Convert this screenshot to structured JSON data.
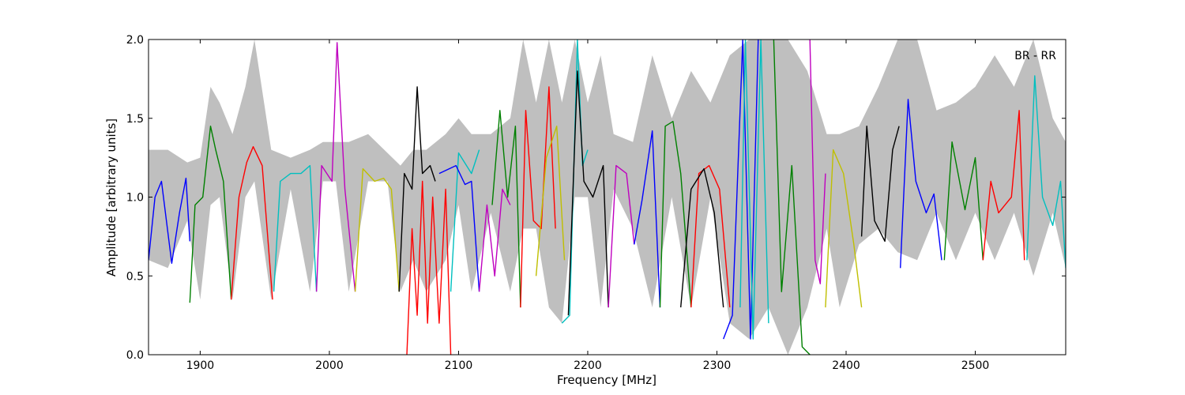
{
  "chart_data": {
    "type": "line",
    "title": "",
    "annotation": "BR - RR",
    "xlabel": "Frequency [MHz]",
    "ylabel": "Amplitude [arbitrary units]",
    "xlim": [
      1860,
      2570
    ],
    "ylim": [
      0.0,
      2.0
    ],
    "xticks": [
      1900,
      2000,
      2100,
      2200,
      2300,
      2400,
      2500
    ],
    "xtick_labels": [
      "1900",
      "2000",
      "2100",
      "2200",
      "2300",
      "2400",
      "2500"
    ],
    "yticks": [
      0.0,
      0.5,
      1.0,
      1.5,
      2.0
    ],
    "ytick_labels": [
      "0.0",
      "0.5",
      "1.0",
      "1.5",
      "2.0"
    ],
    "grid": false,
    "legend": "none",
    "envelope": {
      "color": "#bfbfbf",
      "x": [
        1860,
        1875,
        1890,
        1900,
        1908,
        1915,
        1925,
        1935,
        1942,
        1955,
        1970,
        1985,
        1995,
        2005,
        2015,
        2030,
        2045,
        2055,
        2065,
        2075,
        2090,
        2100,
        2110,
        2125,
        2140,
        2150,
        2160,
        2170,
        2180,
        2190,
        2200,
        2210,
        2220,
        2235,
        2250,
        2265,
        2280,
        2295,
        2310,
        2325,
        2340,
        2355,
        2370,
        2385,
        2395,
        2410,
        2425,
        2440,
        2455,
        2470,
        2485,
        2500,
        2515,
        2530,
        2545,
        2560,
        2570
      ],
      "upper": [
        1.3,
        1.3,
        1.22,
        1.25,
        1.7,
        1.6,
        1.4,
        1.7,
        2.0,
        1.3,
        1.25,
        1.3,
        1.35,
        1.35,
        1.35,
        1.4,
        1.28,
        1.2,
        1.3,
        1.3,
        1.4,
        1.5,
        1.4,
        1.4,
        1.5,
        2.0,
        1.6,
        2.0,
        1.6,
        2.0,
        1.6,
        1.9,
        1.4,
        1.35,
        1.9,
        1.5,
        1.8,
        1.6,
        1.9,
        2.0,
        2.0,
        2.0,
        1.8,
        1.4,
        1.4,
        1.45,
        1.7,
        2.0,
        2.0,
        1.55,
        1.6,
        1.7,
        1.9,
        1.7,
        2.0,
        1.5,
        1.35
      ],
      "lower": [
        0.6,
        0.55,
        0.85,
        0.35,
        0.95,
        1.0,
        0.35,
        1.0,
        1.1,
        0.35,
        1.05,
        0.4,
        1.1,
        1.1,
        0.4,
        1.1,
        1.1,
        0.4,
        0.6,
        0.4,
        0.6,
        0.95,
        0.4,
        0.9,
        0.4,
        0.8,
        0.8,
        0.3,
        0.2,
        1.0,
        1.0,
        0.3,
        1.05,
        0.8,
        0.3,
        1.0,
        0.3,
        1.0,
        0.2,
        0.1,
        0.3,
        0.0,
        0.3,
        0.8,
        0.3,
        0.7,
        0.8,
        0.65,
        0.6,
        0.9,
        0.6,
        0.9,
        0.6,
        0.9,
        0.5,
        0.9,
        0.55
      ]
    },
    "series": [
      {
        "color": "#0000ff",
        "x": [
          1860,
          1865,
          1870,
          1878,
          1884,
          1889,
          1892
        ],
        "y": [
          0.6,
          1.0,
          1.1,
          0.58,
          0.9,
          1.12,
          0.72
        ]
      },
      {
        "color": "#008000",
        "x": [
          1892,
          1896,
          1902,
          1908,
          1912,
          1918,
          1924
        ],
        "y": [
          0.33,
          0.95,
          1.0,
          1.45,
          1.3,
          1.1,
          0.35
        ]
      },
      {
        "color": "#ff0000",
        "x": [
          1924,
          1930,
          1936,
          1941,
          1948,
          1956
        ],
        "y": [
          0.35,
          1.0,
          1.22,
          1.32,
          1.2,
          0.35
        ]
      },
      {
        "color": "#00bfbf",
        "x": [
          1957,
          1962,
          1970,
          1978,
          1985,
          1990
        ],
        "y": [
          0.4,
          1.1,
          1.15,
          1.15,
          1.2,
          0.4
        ]
      },
      {
        "color": "#bf00bf",
        "x": [
          1990,
          1994,
          2002,
          2006,
          2012,
          2020
        ],
        "y": [
          0.4,
          1.2,
          1.1,
          1.98,
          1.05,
          0.4
        ]
      },
      {
        "color": "#bfbf00",
        "x": [
          2020,
          2026,
          2035,
          2042,
          2048,
          2054
        ],
        "y": [
          0.4,
          1.18,
          1.1,
          1.12,
          1.05,
          0.4
        ]
      },
      {
        "color": "#000000",
        "x": [
          2054,
          2058,
          2064,
          2068,
          2072,
          2078,
          2082
        ],
        "y": [
          0.4,
          1.15,
          1.05,
          1.7,
          1.15,
          1.2,
          1.1
        ]
      },
      {
        "color": "#ff0000",
        "x": [
          2060,
          2064,
          2068,
          2072,
          2076,
          2080,
          2085,
          2090,
          2094
        ],
        "y": [
          0.0,
          0.8,
          0.25,
          1.1,
          0.2,
          1.0,
          0.2,
          1.05,
          0.0
        ]
      },
      {
        "color": "#00bfbf",
        "x": [
          2094,
          2100,
          2110,
          2116
        ],
        "y": [
          0.4,
          1.28,
          1.15,
          1.3
        ]
      },
      {
        "color": "#0000ff",
        "x": [
          2085,
          2098,
          2105,
          2110,
          2116
        ],
        "y": [
          1.15,
          1.2,
          1.08,
          1.1,
          0.4
        ]
      },
      {
        "color": "#bf00bf",
        "x": [
          2116,
          2122,
          2128,
          2134,
          2140
        ],
        "y": [
          0.4,
          0.95,
          0.5,
          1.05,
          0.95
        ]
      },
      {
        "color": "#008000",
        "x": [
          2126,
          2132,
          2138,
          2144,
          2148
        ],
        "y": [
          0.95,
          1.55,
          1.0,
          1.45,
          0.3
        ]
      },
      {
        "color": "#ff0000",
        "x": [
          2148,
          2152,
          2158,
          2164,
          2170,
          2175
        ],
        "y": [
          0.3,
          1.55,
          0.85,
          0.8,
          1.7,
          0.8
        ]
      },
      {
        "color": "#bfbf00",
        "x": [
          2160,
          2168,
          2176,
          2182
        ],
        "y": [
          0.5,
          1.25,
          1.45,
          0.6
        ]
      },
      {
        "color": "#00bfbf",
        "x": [
          2180,
          2186,
          2192,
          2196,
          2200
        ],
        "y": [
          0.2,
          0.25,
          2.0,
          1.2,
          1.3
        ]
      },
      {
        "color": "#000000",
        "x": [
          2185,
          2192,
          2197,
          2204,
          2212,
          2216
        ],
        "y": [
          0.25,
          1.8,
          1.1,
          1.0,
          1.2,
          0.3
        ]
      },
      {
        "color": "#bf00bf",
        "x": [
          2216,
          2222,
          2230,
          2236
        ],
        "y": [
          0.3,
          1.2,
          1.15,
          0.7
        ]
      },
      {
        "color": "#0000ff",
        "x": [
          2236,
          2242,
          2250,
          2256
        ],
        "y": [
          0.7,
          0.98,
          1.42,
          0.3
        ]
      },
      {
        "color": "#008000",
        "x": [
          2256,
          2260,
          2266,
          2272,
          2280
        ],
        "y": [
          0.3,
          1.45,
          1.48,
          1.15,
          0.3
        ]
      },
      {
        "color": "#ff0000",
        "x": [
          2280,
          2286,
          2294,
          2302,
          2310
        ],
        "y": [
          0.3,
          1.15,
          1.2,
          1.05,
          0.3
        ]
      },
      {
        "color": "#000000",
        "x": [
          2272,
          2280,
          2290,
          2298,
          2305
        ],
        "y": [
          0.3,
          1.05,
          1.18,
          0.9,
          0.3
        ]
      },
      {
        "color": "#0000ff",
        "x": [
          2305,
          2312,
          2320,
          2326,
          2332
        ],
        "y": [
          0.1,
          0.25,
          2.0,
          0.1,
          2.0
        ]
      },
      {
        "color": "#00bfbf",
        "x": [
          2318,
          2322,
          2328,
          2334,
          2340
        ],
        "y": [
          0.3,
          2.0,
          0.1,
          2.0,
          0.2
        ]
      },
      {
        "color": "#008000",
        "x": [
          2344,
          2350,
          2358,
          2366,
          2372
        ],
        "y": [
          2.0,
          0.4,
          1.2,
          0.05,
          0.0
        ]
      },
      {
        "color": "#bf00bf",
        "x": [
          2372,
          2376,
          2380,
          2384
        ],
        "y": [
          2.0,
          0.6,
          0.45,
          1.15
        ]
      },
      {
        "color": "#bfbf00",
        "x": [
          2384,
          2390,
          2398,
          2406,
          2412
        ],
        "y": [
          0.3,
          1.3,
          1.15,
          0.7,
          0.3
        ]
      },
      {
        "color": "#000000",
        "x": [
          2412,
          2416,
          2422,
          2430,
          2436,
          2441
        ],
        "y": [
          0.75,
          1.45,
          0.85,
          0.72,
          1.3,
          1.45
        ]
      },
      {
        "color": "#0000ff",
        "x": [
          2442,
          2448,
          2454,
          2462,
          2468,
          2474
        ],
        "y": [
          0.55,
          1.62,
          1.1,
          0.9,
          1.02,
          0.6
        ]
      },
      {
        "color": "#008000",
        "x": [
          2476,
          2482,
          2492,
          2500,
          2506
        ],
        "y": [
          0.6,
          1.35,
          0.92,
          1.25,
          0.6
        ]
      },
      {
        "color": "#ff0000",
        "x": [
          2506,
          2512,
          2518,
          2528,
          2534,
          2538
        ],
        "y": [
          0.6,
          1.1,
          0.9,
          1.0,
          1.55,
          0.6
        ]
      },
      {
        "color": "#00bfbf",
        "x": [
          2540,
          2546,
          2552,
          2560,
          2566,
          2570
        ],
        "y": [
          0.6,
          1.77,
          1.0,
          0.82,
          1.1,
          0.55
        ]
      }
    ]
  }
}
